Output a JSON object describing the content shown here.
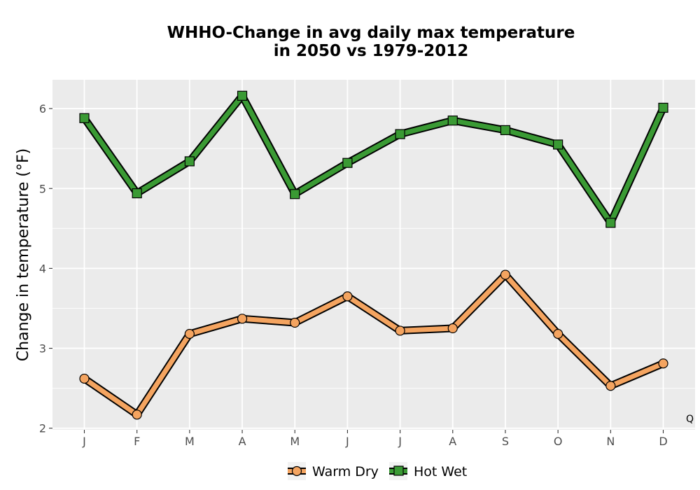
{
  "chart_data": {
    "type": "line",
    "title_lines": [
      "WHHO-Change in avg daily max temperature",
      "in 2050 vs 1979-2012"
    ],
    "ylabel": "Change in temperature (°F)",
    "xlabel": "",
    "categories": [
      "J",
      "F",
      "M",
      "A",
      "M",
      "J",
      "J",
      "A",
      "S",
      "O",
      "N",
      "D"
    ],
    "ylim": [
      1.98,
      6.36
    ],
    "yticks": [
      2,
      3,
      4,
      5,
      6
    ],
    "grid": true,
    "legend_position": "bottom",
    "corner_label": "Q",
    "series": [
      {
        "name": "Warm Dry",
        "marker": "circle",
        "color": "#f4a460",
        "values": [
          2.62,
          2.17,
          3.18,
          3.37,
          3.32,
          3.65,
          3.22,
          3.25,
          3.92,
          3.18,
          2.53,
          2.81
        ]
      },
      {
        "name": "Hot Wet",
        "marker": "square",
        "color": "#3a9a34",
        "values": [
          5.88,
          4.94,
          5.34,
          6.16,
          4.93,
          5.32,
          5.68,
          5.85,
          5.73,
          5.55,
          4.57,
          6.01
        ]
      }
    ]
  }
}
